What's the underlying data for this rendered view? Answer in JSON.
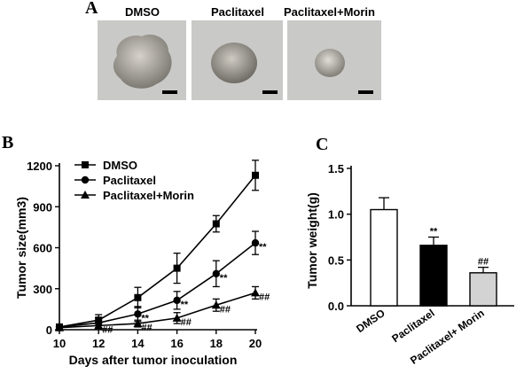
{
  "panels": {
    "a_label": "A",
    "b_label": "B",
    "c_label": "C"
  },
  "photos": [
    {
      "label": "DMSO",
      "tumor_color": "#b9b5ad"
    },
    {
      "label": "Paclitaxel",
      "tumor_color": "#9e9c94"
    },
    {
      "label": "Paclitaxel+Morin",
      "tumor_color": "#a9a69f"
    }
  ],
  "chart_data": [
    {
      "type": "line",
      "panel": "B",
      "xlabel": "Days after tumor inoculation",
      "ylabel": "Tumor size(mm3)",
      "x": [
        10,
        12,
        14,
        16,
        18,
        20
      ],
      "xticks": [
        "10",
        "12",
        "14",
        "16",
        "18",
        "20"
      ],
      "xlim": [
        10,
        20
      ],
      "ylim": [
        0,
        1200
      ],
      "yticks": [
        "0",
        "300",
        "600",
        "900",
        "1200"
      ],
      "ytick_values": [
        0,
        300,
        600,
        900,
        1200
      ],
      "legend_position": "top-left",
      "series": [
        {
          "name": "DMSO",
          "marker": "square",
          "values": [
            20,
            70,
            235,
            450,
            775,
            1130
          ],
          "errors": [
            10,
            40,
            75,
            110,
            60,
            110
          ],
          "annotations": [
            "",
            "",
            "",
            "",
            "",
            ""
          ]
        },
        {
          "name": "Paclitaxel",
          "marker": "circle",
          "values": [
            20,
            50,
            115,
            215,
            410,
            635
          ],
          "errors": [
            10,
            35,
            55,
            65,
            95,
            85
          ],
          "annotations": [
            "",
            "",
            "**",
            "**",
            "**",
            "**"
          ]
        },
        {
          "name": "Paclitaxel+Morin",
          "marker": "triangle",
          "values": [
            15,
            30,
            45,
            85,
            180,
            270
          ],
          "errors": [
            8,
            20,
            25,
            40,
            45,
            45
          ],
          "annotations": [
            "",
            "##",
            "##",
            "##",
            "##",
            "##"
          ]
        }
      ]
    },
    {
      "type": "bar",
      "panel": "C",
      "ylabel": "Tumor weight(g)",
      "categories": [
        "DMSO",
        "Paclitaxel",
        "Paclitaxel+ Morin"
      ],
      "values": [
        1.05,
        0.66,
        0.36
      ],
      "errors": [
        0.13,
        0.09,
        0.06
      ],
      "annotations": [
        "",
        "**",
        "##"
      ],
      "colors": [
        "#ffffff",
        "#000000",
        "#d3d3d3"
      ],
      "ylim": [
        0,
        1.5
      ],
      "yticks": [
        "0.0",
        "0.5",
        "1.0",
        "1.5"
      ],
      "ytick_values": [
        0,
        0.5,
        1.0,
        1.5
      ]
    }
  ]
}
